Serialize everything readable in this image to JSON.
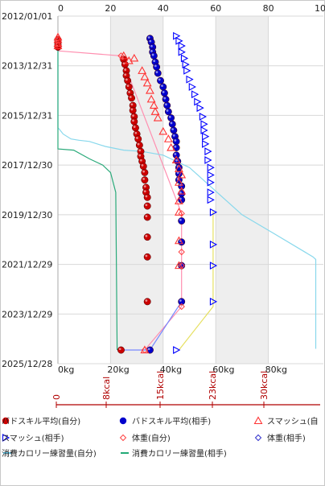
{
  "chart_data": {
    "type": "scatter",
    "y_axis_dates": [
      "2012/01/01",
      "2013/12/31",
      "2015/12/31",
      "2017/12/30",
      "2019/12/30",
      "2021/12/29",
      "2023/12/29",
      "2025/12/28"
    ],
    "top_ticks": [
      "0",
      "20",
      "40",
      "60",
      "80",
      "10"
    ],
    "kg_ticks": [
      "0kg",
      "20kg",
      "40kg",
      "60kg",
      "80kg"
    ],
    "kcal_ticks": [
      "0",
      "8kcal",
      "15kcal",
      "23kcal",
      "30kcal"
    ],
    "kg_range": [
      0,
      100
    ],
    "kcal_range": [
      0,
      31
    ],
    "legend": [
      {
        "label": "バドスキル平均(自分)",
        "marker": "circle",
        "color": "#cc0000"
      },
      {
        "label": "バドスキル平均(相手)",
        "marker": "circle",
        "color": "#0000cc"
      },
      {
        "label": "スマッシュ(自",
        "marker": "triangle-up",
        "color": "#ff3333"
      },
      {
        "label": "スマッシュ(相手)",
        "marker": "triangle-right",
        "color": "#0000ff"
      },
      {
        "label": "体重(自分)",
        "marker": "diamond",
        "color": "#ff4444"
      },
      {
        "label": "体重(相手)",
        "marker": "diamond",
        "color": "#3333cc"
      },
      {
        "label": "消費カロリー練習量(自分)",
        "marker": "line",
        "color": "#66ccee"
      },
      {
        "label": "消費カロリー練習量(相手)",
        "marker": "line",
        "color": "#22aa77"
      }
    ],
    "series": [
      {
        "key": "red_circle",
        "kind": "circle",
        "color": "#cc0000",
        "points": [
          [
            0,
            2012.95
          ],
          [
            0,
            2013.05
          ],
          [
            0,
            2013.15
          ],
          [
            0,
            2013.25
          ],
          [
            25,
            2013.75
          ],
          [
            25.5,
            2013.95
          ],
          [
            26,
            2014.2
          ],
          [
            26,
            2014.4
          ],
          [
            26.5,
            2014.6
          ],
          [
            27,
            2014.85
          ],
          [
            27.5,
            2015.1
          ],
          [
            28,
            2015.3
          ],
          [
            28.5,
            2015.6
          ],
          [
            28.5,
            2015.8
          ],
          [
            29,
            2016.05
          ],
          [
            29,
            2016.25
          ],
          [
            29.5,
            2016.5
          ],
          [
            30,
            2016.75
          ],
          [
            30.5,
            2016.95
          ],
          [
            31,
            2017.2
          ],
          [
            31.5,
            2017.45
          ],
          [
            31.5,
            2017.65
          ],
          [
            32,
            2017.85
          ],
          [
            32.5,
            2018.05
          ],
          [
            33,
            2018.3
          ],
          [
            33,
            2018.6
          ],
          [
            33.5,
            2018.9
          ],
          [
            33.5,
            2019.1
          ],
          [
            34,
            2019.3
          ],
          [
            34,
            2019.65
          ],
          [
            34,
            2020.1
          ],
          [
            34,
            2020.9
          ],
          [
            34,
            2021.7
          ],
          [
            34,
            2023.5
          ],
          [
            24,
            2025.45
          ]
        ]
      },
      {
        "key": "blue_circle",
        "kind": "circle",
        "color": "#0000cc",
        "points": [
          [
            35,
            2012.9
          ],
          [
            35.5,
            2013.05
          ],
          [
            36,
            2013.25
          ],
          [
            36,
            2013.45
          ],
          [
            36.5,
            2013.6
          ],
          [
            37,
            2013.85
          ],
          [
            37.5,
            2014.05
          ],
          [
            38,
            2014.3
          ],
          [
            39,
            2014.6
          ],
          [
            40,
            2014.85
          ],
          [
            40.5,
            2015.1
          ],
          [
            41,
            2015.35
          ],
          [
            41.5,
            2015.6
          ],
          [
            42,
            2015.85
          ],
          [
            43,
            2016.1
          ],
          [
            43.5,
            2016.35
          ],
          [
            44,
            2016.6
          ],
          [
            44.5,
            2016.85
          ],
          [
            45,
            2017.05
          ],
          [
            45,
            2017.3
          ],
          [
            45,
            2017.6
          ],
          [
            45.5,
            2017.85
          ],
          [
            46,
            2018.1
          ],
          [
            46,
            2018.35
          ],
          [
            46,
            2018.6
          ],
          [
            47,
            2018.85
          ],
          [
            47,
            2019.15
          ],
          [
            47,
            2019.4
          ],
          [
            47,
            2020.25
          ],
          [
            47,
            2021.1
          ],
          [
            47,
            2022.05
          ],
          [
            47,
            2023.5
          ],
          [
            35,
            2025.45
          ]
        ]
      },
      {
        "key": "red_tri",
        "kind": "tri_up",
        "color": "#ff3333",
        "points": [
          [
            0,
            2012.85
          ],
          [
            0,
            2012.95
          ],
          [
            0,
            2013.1
          ],
          [
            0,
            2013.2
          ],
          [
            25,
            2013.6
          ],
          [
            27,
            2013.8
          ],
          [
            29,
            2013.7
          ],
          [
            32,
            2014.2
          ],
          [
            33,
            2014.45
          ],
          [
            34,
            2014.7
          ],
          [
            35,
            2015.0
          ],
          [
            35.5,
            2015.35
          ],
          [
            36.5,
            2015.6
          ],
          [
            37,
            2015.85
          ],
          [
            38,
            2016.1
          ],
          [
            40,
            2016.65
          ],
          [
            42,
            2016.95
          ],
          [
            43,
            2017.3
          ],
          [
            45,
            2017.8
          ],
          [
            46,
            2018.15
          ],
          [
            47,
            2018.4
          ],
          [
            46,
            2018.7
          ],
          [
            47,
            2019.05
          ],
          [
            46,
            2019.45
          ],
          [
            46,
            2019.9
          ],
          [
            46,
            2021.05
          ],
          [
            46,
            2022.05
          ],
          [
            33,
            2025.45
          ]
        ]
      },
      {
        "key": "blue_tri",
        "kind": "tri_right",
        "color": "#0000ff",
        "points": [
          [
            45,
            2012.8
          ],
          [
            46,
            2013.0
          ],
          [
            47,
            2013.2
          ],
          [
            47,
            2013.45
          ],
          [
            48,
            2013.7
          ],
          [
            48.5,
            2013.95
          ],
          [
            49,
            2014.2
          ],
          [
            50,
            2014.55
          ],
          [
            51,
            2014.85
          ],
          [
            52,
            2015.15
          ],
          [
            53,
            2015.45
          ],
          [
            54,
            2015.7
          ],
          [
            55,
            2016.05
          ],
          [
            55.5,
            2016.35
          ],
          [
            55.5,
            2016.6
          ],
          [
            56,
            2016.85
          ],
          [
            56,
            2017.15
          ],
          [
            57,
            2017.45
          ],
          [
            57,
            2017.8
          ],
          [
            58,
            2018.1
          ],
          [
            58,
            2018.4
          ],
          [
            58,
            2018.7
          ],
          [
            58,
            2019.1
          ],
          [
            58,
            2019.4
          ],
          [
            59,
            2019.9
          ],
          [
            59,
            2021.2
          ],
          [
            59,
            2022.05
          ],
          [
            59,
            2023.5
          ],
          [
            45,
            2025.45
          ]
        ]
      }
    ],
    "lines": [
      {
        "key": "pink_line",
        "color": "#ff8fb0",
        "points": [
          [
            0,
            2013.4
          ],
          [
            24,
            2013.6
          ],
          [
            47,
            2019.95
          ],
          [
            47,
            2021.5
          ],
          [
            47,
            2022.05
          ],
          [
            47,
            2023.7
          ],
          [
            33,
            2025.45
          ]
        ]
      },
      {
        "key": "yellow_line",
        "color": "#e6e060",
        "points": [
          [
            59,
            2019.85
          ],
          [
            59,
            2021.2
          ],
          [
            59,
            2023.7
          ],
          [
            46,
            2025.45
          ]
        ]
      },
      {
        "key": "blue_thin_line",
        "color": "#7788ff",
        "points": [
          [
            24,
            2025.45
          ],
          [
            35,
            2025.45
          ],
          [
            47,
            2023.5
          ]
        ]
      },
      {
        "key": "light_blue_line",
        "color": "#88d8ec",
        "points": [
          [
            0,
            2012.8
          ],
          [
            0,
            2016.5
          ],
          [
            0.5,
            2016.55
          ],
          [
            2,
            2016.75
          ],
          [
            5,
            2016.95
          ],
          [
            8,
            2017.0
          ],
          [
            12,
            2017.05
          ],
          [
            18,
            2017.25
          ],
          [
            25,
            2017.4
          ],
          [
            32,
            2017.45
          ],
          [
            40,
            2017.6
          ],
          [
            50,
            2018.1
          ],
          [
            70,
            2020.0
          ],
          [
            82,
            2020.75
          ],
          [
            97,
            2021.7
          ],
          [
            98,
            2021.8
          ],
          [
            98,
            2025.4
          ]
        ]
      },
      {
        "key": "green_line",
        "color": "#2aaa7a",
        "points": [
          [
            0,
            2012.8
          ],
          [
            0,
            2017.35
          ],
          [
            6,
            2017.4
          ],
          [
            12,
            2017.75
          ],
          [
            17,
            2018.0
          ],
          [
            20,
            2018.3
          ],
          [
            22,
            2019.1
          ],
          [
            22.5,
            2025.45
          ]
        ]
      }
    ]
  }
}
